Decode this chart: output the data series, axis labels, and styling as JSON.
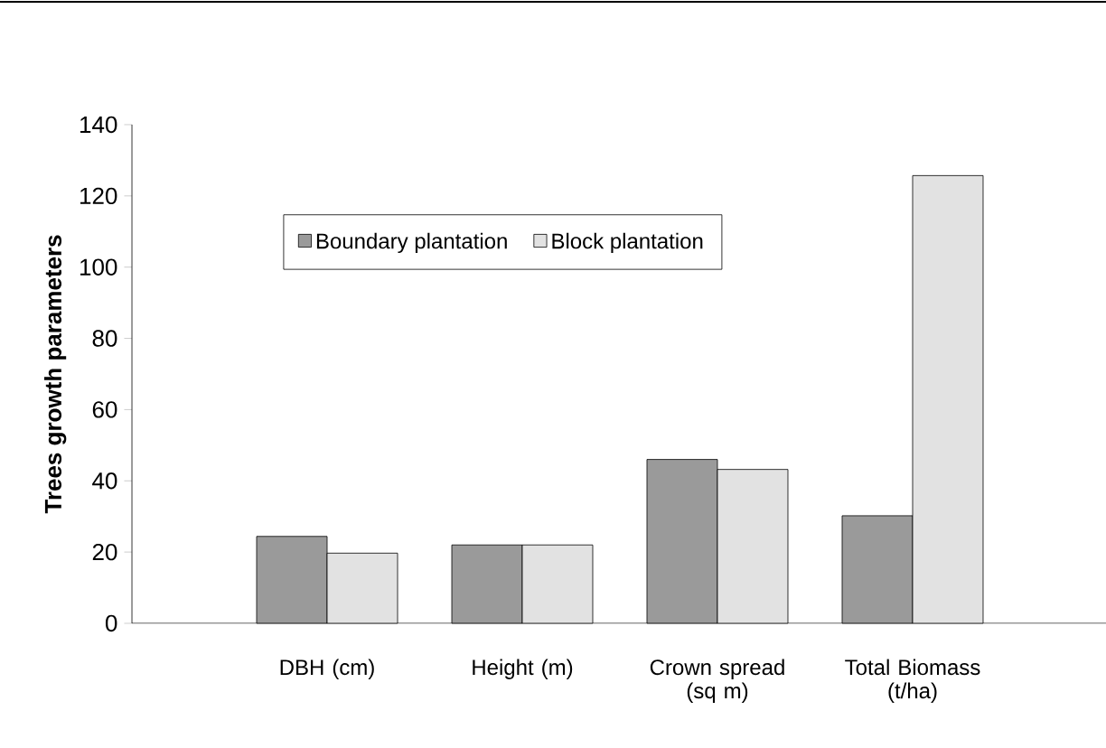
{
  "chart_data": {
    "type": "bar",
    "ylabel": "Trees growth  parameters",
    "categories": [
      "DBH (cm)",
      "Height (m)",
      "Crown spread (sq m)",
      "Total Biomass (t/ha)"
    ],
    "series": [
      {
        "name": "Boundary plantation",
        "color": "#9a9a9a",
        "values": [
          24.4,
          22.0,
          46.0,
          30.2
        ]
      },
      {
        "name": "Block plantation",
        "color": "#e2e2e2",
        "values": [
          19.7,
          22.0,
          43.2,
          125.7
        ]
      }
    ],
    "ylim": [
      0,
      140
    ],
    "yticks": [
      0,
      20,
      40,
      60,
      80,
      100,
      120,
      140
    ],
    "grid": false,
    "legend": "top"
  }
}
